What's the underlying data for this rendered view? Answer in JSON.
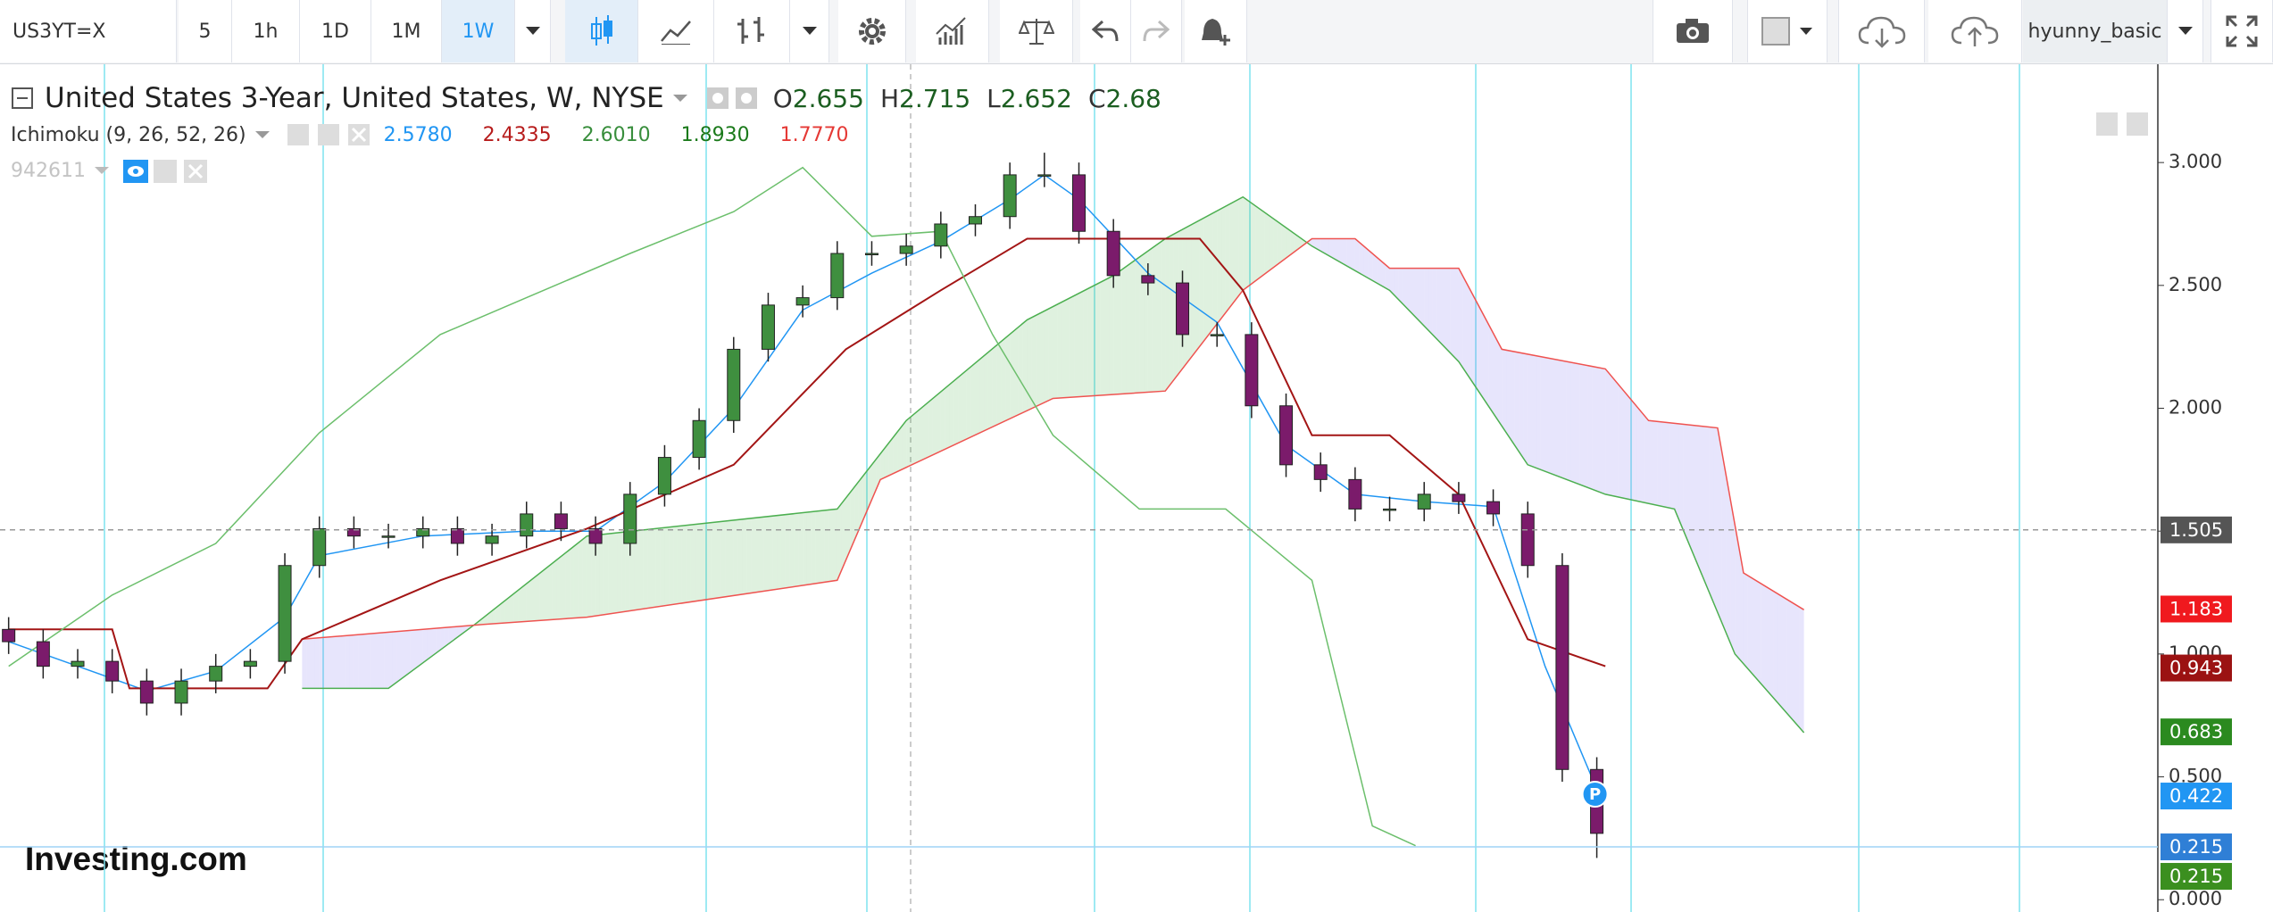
{
  "toolbar": {
    "symbol": "US3YT=X",
    "intervals": [
      "5",
      "1h",
      "1D",
      "1M",
      "1W"
    ],
    "active_interval": 4,
    "user": "hyunny_basic"
  },
  "legend": {
    "title": "United States 3-Year, United States, W, NYSE",
    "ohlc": [
      {
        "label": "O",
        "value": 2.655
      },
      {
        "label": "H",
        "value": 2.715
      },
      {
        "label": "L",
        "value": 2.652
      },
      {
        "label": "C",
        "value": 2.68
      }
    ],
    "indicator": "Ichimoku (9, 26, 52, 26)",
    "indicator_values": [
      {
        "text": "2.5780",
        "color": "#2196f3"
      },
      {
        "text": "2.4335",
        "color": "#b71c1c"
      },
      {
        "text": "2.6010",
        "color": "#388e3c"
      },
      {
        "text": "1.8930",
        "color": "#1b7a1b"
      },
      {
        "text": "1.7770",
        "color": "#e53935"
      }
    ],
    "study": "942611"
  },
  "logo": "Investing.com",
  "marker": "P",
  "chart_data": {
    "type": "candlestick",
    "x": [
      0,
      4,
      8,
      12,
      16,
      20,
      24,
      28,
      32,
      36,
      40,
      44,
      48,
      52,
      56,
      60,
      64,
      68,
      72,
      76,
      80,
      84,
      88,
      92,
      96,
      100,
      104,
      108,
      112,
      116,
      120,
      124,
      128,
      132,
      136,
      140,
      144,
      148,
      152,
      156,
      160,
      164,
      168,
      172,
      176,
      180,
      184
    ],
    "open": [
      1.1,
      1.05,
      0.95,
      0.97,
      0.89,
      0.8,
      0.89,
      0.95,
      0.97,
      1.36,
      1.51,
      1.48,
      1.48,
      1.51,
      1.45,
      1.48,
      1.57,
      1.51,
      1.45,
      1.65,
      1.8,
      1.95,
      2.24,
      2.42,
      2.45,
      2.63,
      2.63,
      2.66,
      2.75,
      2.78,
      2.95,
      2.95,
      2.72,
      2.54,
      2.51,
      2.3,
      2.3,
      2.01,
      1.77,
      1.71,
      1.59,
      1.59,
      1.65,
      1.62,
      1.57,
      1.36,
      0.53
    ],
    "high": [
      1.15,
      1.1,
      1.02,
      1.02,
      0.94,
      0.94,
      1.0,
      1.02,
      1.41,
      1.56,
      1.56,
      1.53,
      1.56,
      1.56,
      1.53,
      1.62,
      1.62,
      1.56,
      1.7,
      1.85,
      2.0,
      2.29,
      2.47,
      2.5,
      2.68,
      2.68,
      2.71,
      2.8,
      2.83,
      3.0,
      3.04,
      3.0,
      2.77,
      2.59,
      2.56,
      2.35,
      2.35,
      2.06,
      1.82,
      1.76,
      1.64,
      1.7,
      1.7,
      1.67,
      1.62,
      1.41,
      0.58
    ],
    "low": [
      1.0,
      0.9,
      0.9,
      0.84,
      0.75,
      0.75,
      0.84,
      0.9,
      0.92,
      1.31,
      1.43,
      1.43,
      1.43,
      1.4,
      1.4,
      1.43,
      1.46,
      1.4,
      1.4,
      1.6,
      1.75,
      1.9,
      2.19,
      2.37,
      2.4,
      2.58,
      2.58,
      2.61,
      2.7,
      2.73,
      2.9,
      2.67,
      2.49,
      2.46,
      2.25,
      2.25,
      1.96,
      1.72,
      1.66,
      1.54,
      1.54,
      1.54,
      1.57,
      1.52,
      1.31,
      0.48,
      0.17
    ],
    "close": [
      1.05,
      0.95,
      0.97,
      0.89,
      0.8,
      0.89,
      0.95,
      0.97,
      1.36,
      1.51,
      1.48,
      1.48,
      1.51,
      1.45,
      1.48,
      1.57,
      1.51,
      1.45,
      1.65,
      1.8,
      1.95,
      2.24,
      2.42,
      2.45,
      2.63,
      2.63,
      2.66,
      2.75,
      2.78,
      2.95,
      2.95,
      2.72,
      2.54,
      2.51,
      2.3,
      2.3,
      2.01,
      1.77,
      1.71,
      1.59,
      1.59,
      1.65,
      1.62,
      1.57,
      1.36,
      0.53,
      0.27
    ],
    "up_color": "#3f8f3f",
    "down_color": "#7b1b6b",
    "overlays": [
      {
        "color": "#2196f3",
        "x": [
          0,
          8,
          16,
          24,
          32,
          36,
          48,
          60,
          68,
          76,
          84,
          92,
          100,
          108,
          116,
          120,
          124,
          132,
          140,
          148,
          156,
          164,
          172,
          178,
          184
        ],
        "values": [
          1.05,
          0.95,
          0.85,
          0.93,
          1.15,
          1.4,
          1.48,
          1.5,
          1.5,
          1.7,
          2.0,
          2.4,
          2.55,
          2.68,
          2.85,
          2.95,
          2.85,
          2.55,
          2.35,
          1.85,
          1.65,
          1.62,
          1.6,
          0.95,
          0.45
        ]
      },
      {
        "color": "#a31515",
        "x": [
          0,
          12,
          14,
          30,
          34,
          50,
          67,
          84,
          97,
          108,
          118,
          126,
          138,
          143,
          151,
          160,
          168,
          176,
          185
        ],
        "values": [
          1.1,
          1.1,
          0.86,
          0.86,
          1.06,
          1.3,
          1.51,
          1.77,
          2.24,
          2.48,
          2.69,
          2.69,
          2.69,
          2.48,
          1.89,
          1.89,
          1.65,
          1.06,
          0.95
        ]
      },
      {
        "color": "#6cbf6c",
        "x": [
          0,
          12,
          24,
          36,
          50,
          60,
          72,
          84,
          92,
          100,
          108,
          114,
          121,
          131,
          141,
          151,
          158,
          163
        ],
        "values": [
          0.95,
          1.24,
          1.45,
          1.9,
          2.3,
          2.45,
          2.63,
          2.8,
          2.98,
          2.7,
          2.72,
          2.3,
          1.89,
          1.59,
          1.59,
          1.3,
          0.3,
          0.22
        ]
      }
    ],
    "cloud": {
      "a": {
        "color": "#4caf50",
        "x": [
          34,
          44,
          54,
          67,
          96,
          104,
          118,
          128,
          134,
          143,
          151,
          160,
          168,
          176,
          185,
          193,
          200,
          208
        ],
        "values": [
          0.86,
          0.86,
          1.12,
          1.48,
          1.59,
          1.95,
          2.36,
          2.54,
          2.69,
          2.86,
          2.66,
          2.48,
          2.19,
          1.77,
          1.65,
          1.59,
          1.0,
          0.68
        ]
      },
      "b": {
        "color": "#ef5350",
        "x": [
          34,
          55,
          67,
          96,
          101,
          121,
          134,
          143,
          151,
          156,
          160,
          168,
          173,
          185,
          190,
          198,
          201,
          208
        ],
        "values": [
          1.06,
          1.12,
          1.15,
          1.3,
          1.71,
          2.04,
          2.07,
          2.48,
          2.69,
          2.69,
          2.57,
          2.57,
          2.24,
          2.16,
          1.95,
          1.92,
          1.33,
          1.18
        ]
      },
      "fill_up": "rgba(76,175,80,0.18)",
      "fill_down": "rgba(120,110,240,0.18)"
    },
    "xlim": [
      -1,
      249
    ],
    "ylim": [
      -0.05,
      3.4
    ],
    "yticks": [
      {
        "value": 0,
        "label": "0.000"
      },
      {
        "value": 0.5,
        "label": "0.500"
      },
      {
        "value": 1,
        "label": "1.000"
      },
      {
        "value": 1.5,
        "label": "1.500"
      },
      {
        "value": 2,
        "label": "2.000"
      },
      {
        "value": 2.5,
        "label": "2.500"
      },
      {
        "value": 3,
        "label": "3.000"
      }
    ],
    "price_labels": [
      {
        "value": 1.505,
        "color": "#555555",
        "line": "dashed"
      },
      {
        "value": 1.183,
        "color": "#f0191e"
      },
      {
        "value": 0.943,
        "color": "#9b1212"
      },
      {
        "value": 0.683,
        "color": "#2b8a1f"
      },
      {
        "value": 0.422,
        "color": "#2196f3"
      },
      {
        "value": 0.215,
        "color": "#2f7fd6",
        "line": "solid"
      },
      {
        "value": 0.215,
        "color": "#3b8f1f",
        "offset": 1
      }
    ]
  }
}
